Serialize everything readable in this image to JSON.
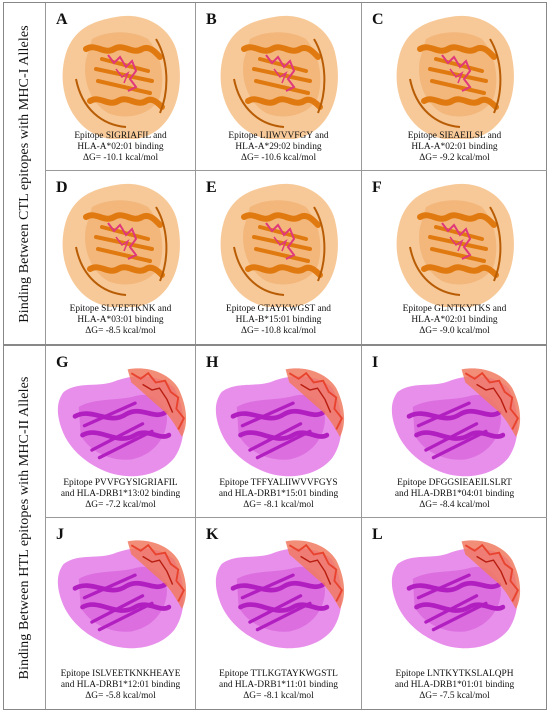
{
  "sections": [
    {
      "label": "Binding Between CTL epitopes with MHC-I Alleles",
      "style": "mhc1"
    },
    {
      "label": "Binding Between HTL epitopes with MHC-II Alleles",
      "style": "mhc2"
    }
  ],
  "colors": {
    "mhc1_surface": "#f6bf86",
    "mhc1_ribbon": "#e07a10",
    "mhc1_ligand": "#e0387a",
    "mhc2_surface": "#e47be8",
    "mhc2_ribbon": "#b21fc0",
    "mhc2_ligand": "#e8432e"
  },
  "panels": [
    {
      "letter": "A",
      "line1": "Epitope SIGRIAFIL and",
      "line2": "HLA-A*02:01 binding",
      "dg": "ΔG= -10.1 kcal/mol"
    },
    {
      "letter": "B",
      "line1": "Epitope LIIWVVFGY and",
      "line2": "HLA-A*29:02 binding",
      "dg": "ΔG= -10.6 kcal/mol"
    },
    {
      "letter": "C",
      "line1": "Epitope SIEAEILSL and",
      "line2": "HLA-A*02:01 binding",
      "dg": "ΔG= -9.2 kcal/mol"
    },
    {
      "letter": "D",
      "line1": "Epitope SLVEETKNK and",
      "line2": "HLA-A*03:01 binding",
      "dg": "ΔG= -8.5 kcal/mol"
    },
    {
      "letter": "E",
      "line1": "Epitope GTAYKWGST and",
      "line2": "HLA-B*15:01 binding",
      "dg": "ΔG= -10.8 kcal/mol"
    },
    {
      "letter": "F",
      "line1": "Epitope GLNTKYTKS and",
      "line2": "HLA-A*02:01 binding",
      "dg": "ΔG= -9.0 kcal/mol"
    },
    {
      "letter": "G",
      "line1": "Epitope PVVFGYSIGRIAFIL",
      "line2": "and HLA-DRB1*13:02 binding",
      "dg": "ΔG= -7.2 kcal/mol"
    },
    {
      "letter": "H",
      "line1": "Epitope TFFYALIIWVVFGYS",
      "line2": "and HLA-DRB1*15:01 binding",
      "dg": "ΔG= -8.1 kcal/mol"
    },
    {
      "letter": "I",
      "line1": "Epitope DFGGSIEAEILSLRT",
      "line2": "and HLA-DRB1*04:01 binding",
      "dg": "ΔG= -8.4 kcal/mol"
    },
    {
      "letter": "J",
      "line1": "Epitope ISLVEETKNKHEAYE",
      "line2": "and HLA-DRB1*12:01 binding",
      "dg": "ΔG= -5.8 kcal/mol"
    },
    {
      "letter": "K",
      "line1": "Epitope TTLKGTAYKWGSTL",
      "line2": "and HLA-DRB1*11:01 binding",
      "dg": "ΔG= -8.1 kcal/mol"
    },
    {
      "letter": "L",
      "line1": "Epitope LNTKYTKSLALQPH",
      "line2": "and HLA-DRB1*01:01 binding",
      "dg": "ΔG= -7.5 kcal/mol"
    }
  ]
}
